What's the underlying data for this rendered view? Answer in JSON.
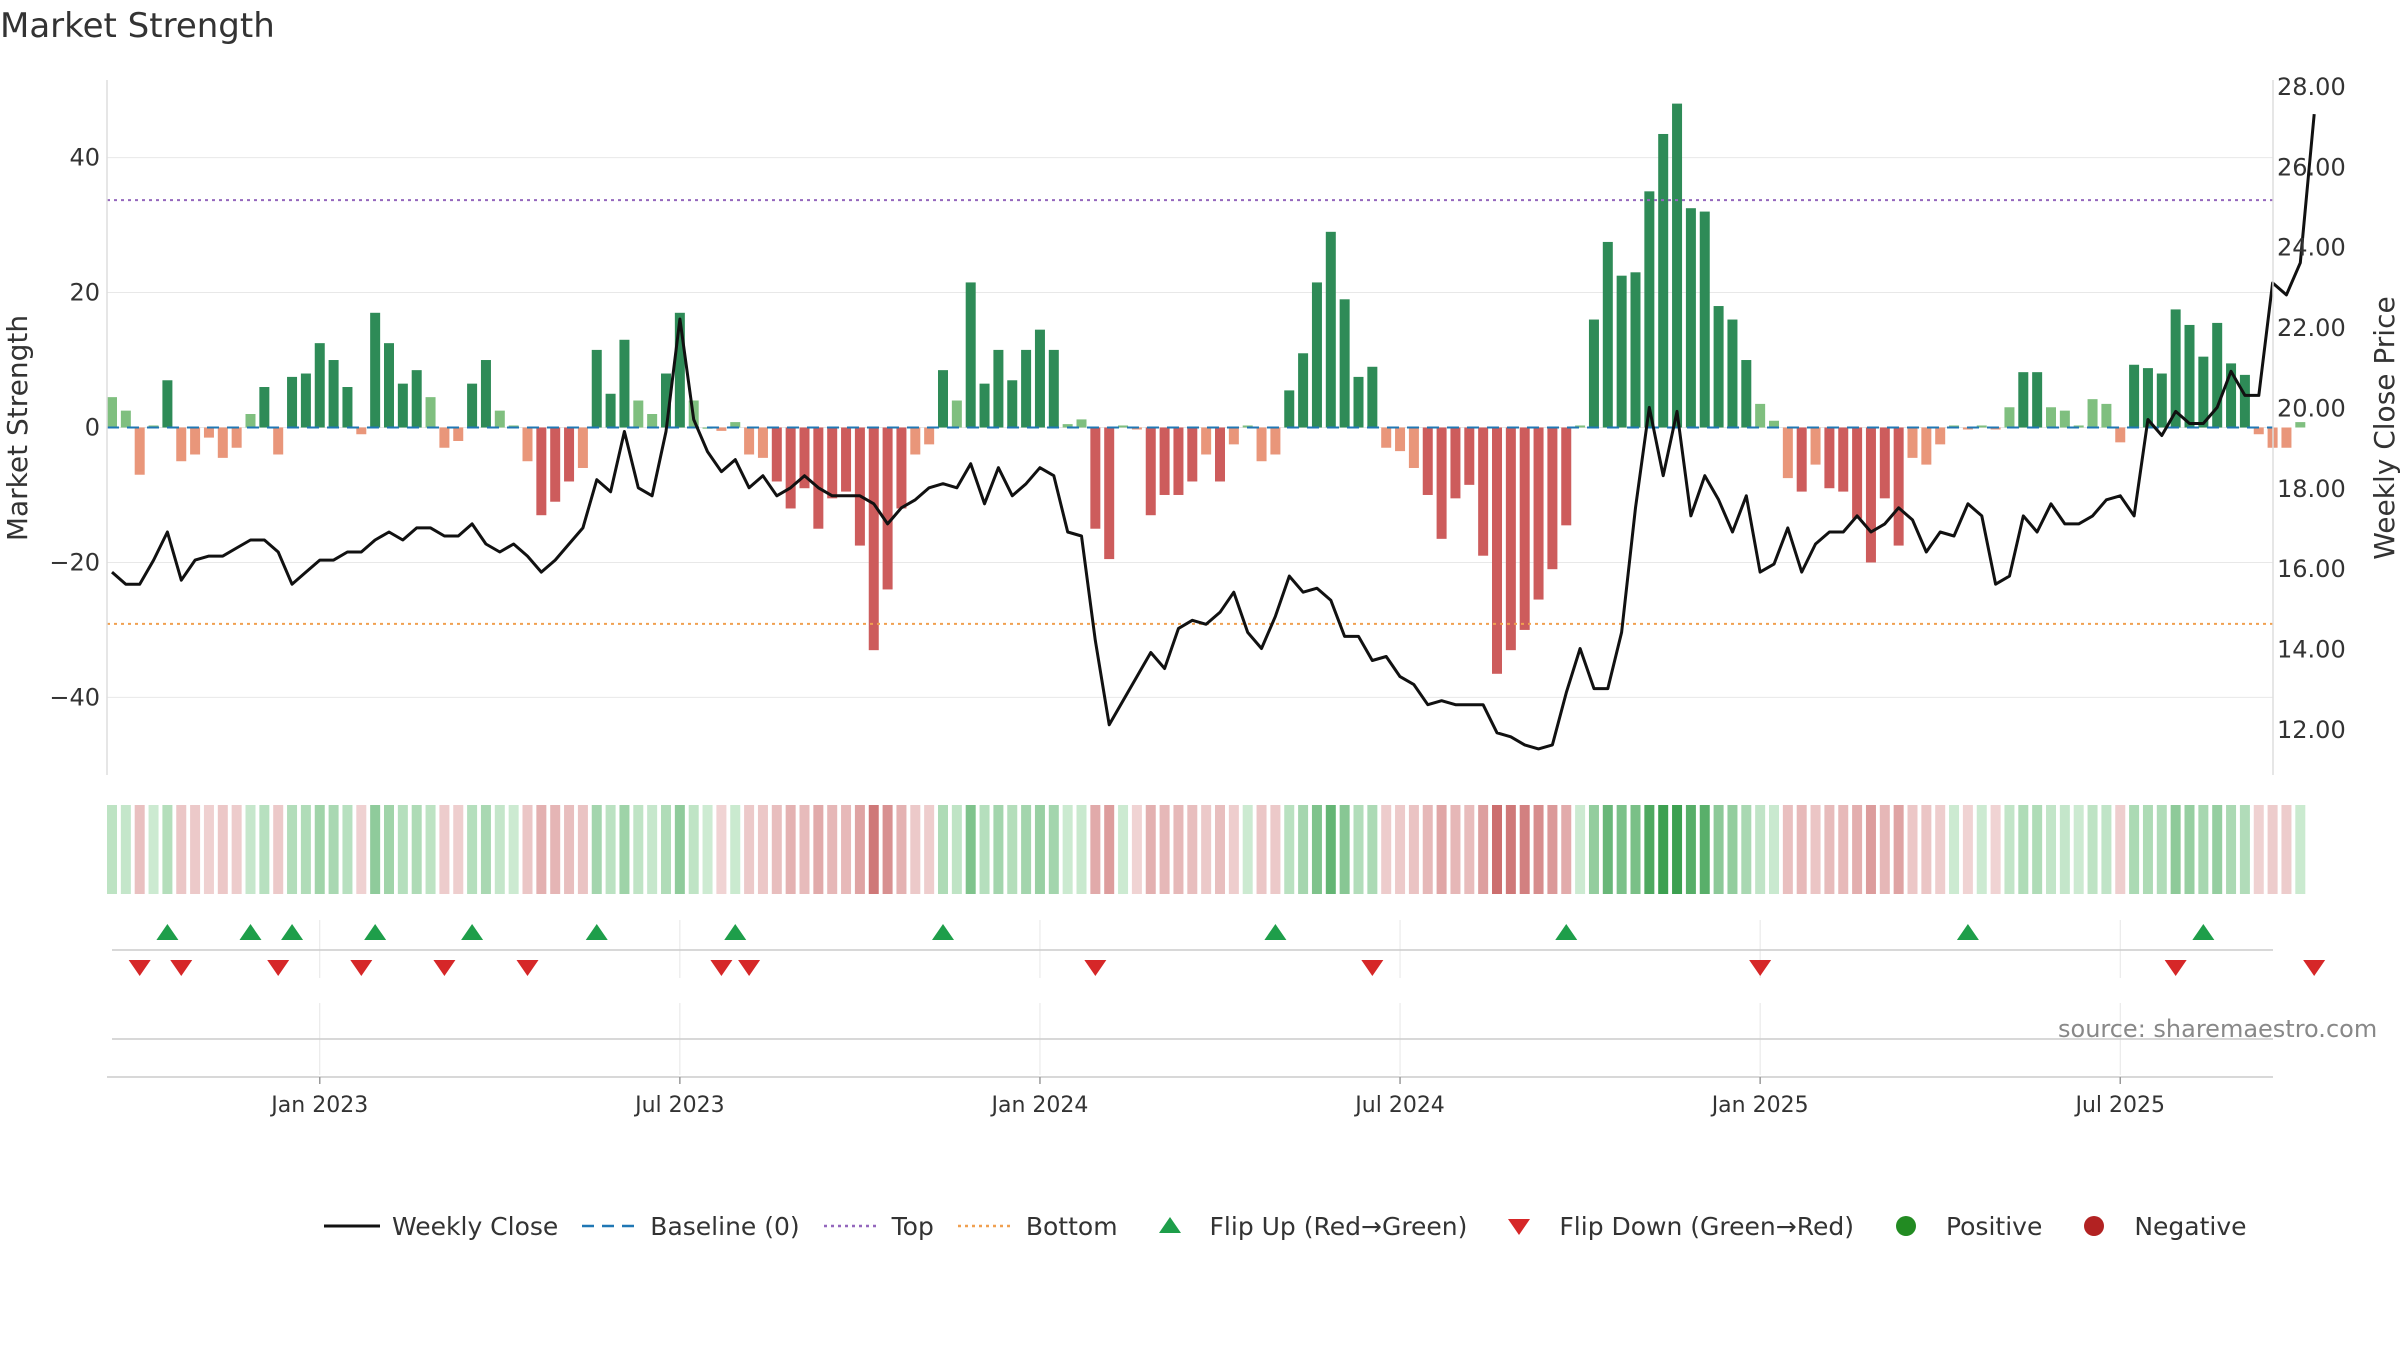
{
  "title": "Market Strength",
  "source": "source: sharemaestro.com",
  "colors": {
    "strong_pos": "#2e8b57",
    "weak_pos": "#7fbf7f",
    "strong_neg": "#cd5c5c",
    "weak_neg": "#e9967a",
    "price_line": "#111111",
    "baseline": "#1f77b4",
    "top": "#9467bd",
    "bottom": "#f0a050",
    "flip_up": "#1e9e4a",
    "flip_down": "#d62728",
    "positive": "#228b22",
    "negative": "#b22222"
  },
  "legend": [
    {
      "label": "Weekly Close",
      "symbol": "line"
    },
    {
      "label": "Baseline (0)",
      "symbol": "dash"
    },
    {
      "label": "Top",
      "symbol": "dot-purple"
    },
    {
      "label": "Bottom",
      "symbol": "dot-orange"
    },
    {
      "label": "Flip Up (Red→Green)",
      "symbol": "triangle-up"
    },
    {
      "label": "Flip Down (Green→Red)",
      "symbol": "triangle-down"
    },
    {
      "label": "Positive",
      "symbol": "circle-green"
    },
    {
      "label": "Negative",
      "symbol": "circle-red"
    }
  ],
  "chart_data": {
    "type": "bar+line",
    "ylabel": "Market Strength",
    "ylabel_right": "Weekly Close Price",
    "y_left": {
      "min": -51.5,
      "max": 51.5,
      "ticks": [
        -40,
        -20,
        0,
        20,
        40
      ],
      "tick_labels": [
        "−40",
        "−20",
        "0",
        "20",
        "40"
      ]
    },
    "y_right": {
      "min": 10.85,
      "max": 28.15,
      "ticks": [
        12,
        14,
        16,
        18,
        20,
        22,
        24,
        26,
        28
      ],
      "tick_labels": [
        "12.00",
        "14.00",
        "16.00",
        "18.00",
        "20.00",
        "22.00",
        "24.00",
        "26.00",
        "28.00"
      ]
    },
    "top_line": 33.7,
    "bottom_line": -29.1,
    "start_week": -15,
    "x_ticks": [
      {
        "week": 0,
        "label": "Jan 2023"
      },
      {
        "week": 26,
        "label": "Jul 2023"
      },
      {
        "week": 52,
        "label": "Jan 2024"
      },
      {
        "week": 78,
        "label": "Jul 2024"
      },
      {
        "week": 104,
        "label": "Jan 2025"
      },
      {
        "week": 130,
        "label": "Jul 2025"
      }
    ],
    "strength": [
      4.5,
      2.5,
      -7,
      0.3,
      7,
      -5,
      -4,
      -1.5,
      -4.5,
      -3,
      2,
      6,
      -4,
      7.5,
      8,
      12.5,
      10,
      6,
      -1,
      17,
      12.5,
      6.5,
      8.5,
      4.5,
      -3,
      -2,
      6.5,
      10,
      2.5,
      0.3,
      -5,
      -13,
      -11,
      -8,
      -6,
      11.5,
      5,
      13,
      4,
      2,
      8,
      17,
      4,
      0,
      -0.5,
      0.8,
      -4,
      -4.5,
      -8,
      -12,
      -9,
      -15,
      -10.5,
      -9.5,
      -17.5,
      -33,
      -24,
      -12,
      -4,
      -2.5,
      8.5,
      4,
      21.5,
      6.5,
      11.5,
      7,
      11.5,
      14.5,
      11.5,
      0.5,
      1.2,
      -15,
      -19.5,
      0.3,
      -0.3,
      -13,
      -10,
      -10,
      -8,
      -4,
      -8,
      -2.5,
      0.3,
      -5,
      -4,
      5.5,
      11,
      21.5,
      29,
      19,
      7.5,
      9,
      -3,
      -3.5,
      -6,
      -10,
      -16.5,
      -10.5,
      -8.5,
      -19,
      -36.5,
      -33,
      -30,
      -25.5,
      -21,
      -14.5,
      0.3,
      16,
      27.5,
      22.5,
      23,
      35,
      43.5,
      48,
      32.5,
      32,
      18,
      16,
      10,
      3.5,
      1,
      -7.5,
      -9.5,
      -5.5,
      -9,
      -9.5,
      -13.5,
      -20,
      -10.5,
      -17.5,
      -4.5,
      -5.5,
      -2.5,
      0.3,
      -0.3,
      0.3,
      -0.3,
      3,
      8.2,
      8.2,
      3,
      2.5,
      0.3,
      4.2,
      3.5,
      -2.2,
      9.3,
      8.8,
      8,
      17.5,
      15.2,
      10.5,
      15.5,
      9.5,
      7.8,
      -1,
      -3,
      -3,
      0.8
    ],
    "price": [
      15.9,
      15.6,
      15.6,
      16.2,
      16.9,
      15.7,
      16.2,
      16.3,
      16.3,
      16.5,
      16.7,
      16.7,
      16.4,
      15.6,
      15.9,
      16.2,
      16.2,
      16.4,
      16.4,
      16.7,
      16.9,
      16.7,
      17,
      17,
      16.8,
      16.8,
      17.1,
      16.6,
      16.4,
      16.6,
      16.3,
      15.9,
      16.2,
      16.6,
      17.0,
      18.2,
      17.9,
      19.4,
      18,
      17.8,
      19.4,
      22.2,
      19.7,
      18.9,
      18.4,
      18.7,
      18.0,
      18.3,
      17.8,
      18.0,
      18.3,
      18.0,
      17.8,
      17.8,
      17.8,
      17.6,
      17.1,
      17.5,
      17.7,
      18.0,
      18.1,
      18.0,
      18.6,
      17.6,
      18.5,
      17.8,
      18.1,
      18.5,
      18.3,
      16.9,
      16.8,
      14.2,
      12.1,
      12.7,
      13.3,
      13.9,
      13.5,
      14.5,
      14.7,
      14.6,
      14.9,
      15.4,
      14.4,
      14.0,
      14.8,
      15.8,
      15.4,
      15.5,
      15.2,
      14.3,
      14.3,
      13.7,
      13.8,
      13.3,
      13.1,
      12.6,
      12.7,
      12.6,
      12.6,
      12.6,
      11.9,
      11.8,
      11.6,
      11.5,
      11.6,
      12.9,
      14.0,
      13.0,
      13.0,
      14.4,
      17.5,
      20.0,
      18.3,
      19.9,
      17.3,
      18.3,
      17.7,
      16.9,
      17.8,
      15.9,
      16.1,
      17.0,
      15.9,
      16.6,
      16.9,
      16.9,
      17.3,
      16.9,
      17.1,
      17.5,
      17.2,
      16.4,
      16.9,
      16.8,
      17.6,
      17.3,
      15.6,
      15.8,
      17.3,
      16.9,
      17.6,
      17.1,
      17.1,
      17.3,
      17.7,
      17.8,
      17.3,
      19.7,
      19.3,
      19.9,
      19.6,
      19.6,
      20.0,
      20.9,
      20.3,
      20.3,
      23.1,
      22.8,
      23.6,
      27.3
    ],
    "flip_up_weeks": [
      -11,
      -5,
      -2,
      4,
      11,
      20,
      30,
      45,
      69,
      90,
      119,
      136
    ],
    "flip_down_weeks": [
      -13,
      -10,
      -3,
      3,
      9,
      15,
      29,
      31,
      56,
      76,
      104,
      134,
      144
    ]
  }
}
